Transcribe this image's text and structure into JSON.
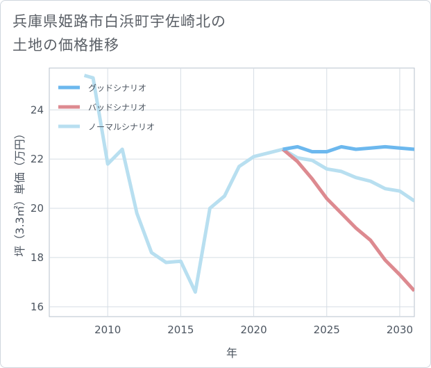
{
  "title": "兵庫県姫路市白浜町宇佐崎北の\n土地の価格推移",
  "chart_data": {
    "type": "line",
    "xlabel": "年",
    "ylabel": "坪（3.3㎡）単価（万円）",
    "xlim": [
      2006,
      2031
    ],
    "ylim": [
      15.6,
      25.7
    ],
    "xticks": [
      2010,
      2015,
      2020,
      2025,
      2030
    ],
    "yticks": [
      16,
      18,
      20,
      22,
      24
    ],
    "grid": true,
    "legend_position": "top-left",
    "series": [
      {
        "name": "グッドシナリオ",
        "color": "#6cb8ee",
        "x": [
          2022,
          2023,
          2024,
          2025,
          2026,
          2027,
          2028,
          2029,
          2030,
          2031
        ],
        "y": [
          22.4,
          22.5,
          22.3,
          22.3,
          22.5,
          22.4,
          22.45,
          22.5,
          22.45,
          22.4
        ]
      },
      {
        "name": "バッドシナリオ",
        "color": "#dd8a90",
        "x": [
          2022,
          2023,
          2024,
          2025,
          2026,
          2027,
          2028,
          2029,
          2030,
          2031
        ],
        "y": [
          22.4,
          21.9,
          21.2,
          20.4,
          19.8,
          19.2,
          18.7,
          17.9,
          17.3,
          16.65
        ]
      },
      {
        "name": "ノーマルシナリオ",
        "color": "#b8dff0",
        "x": [
          2008.4,
          2009,
          2010,
          2011,
          2012,
          2013,
          2014,
          2015,
          2016,
          2017,
          2018,
          2019,
          2020,
          2021,
          2022,
          2023,
          2024,
          2025,
          2026,
          2027,
          2028,
          2029,
          2030,
          2031
        ],
        "y": [
          25.4,
          25.3,
          21.8,
          22.4,
          19.8,
          18.2,
          17.8,
          17.85,
          16.6,
          20.0,
          20.5,
          21.7,
          22.1,
          22.25,
          22.4,
          22.05,
          21.95,
          21.6,
          21.5,
          21.25,
          21.1,
          20.8,
          20.7,
          20.3
        ]
      }
    ]
  }
}
